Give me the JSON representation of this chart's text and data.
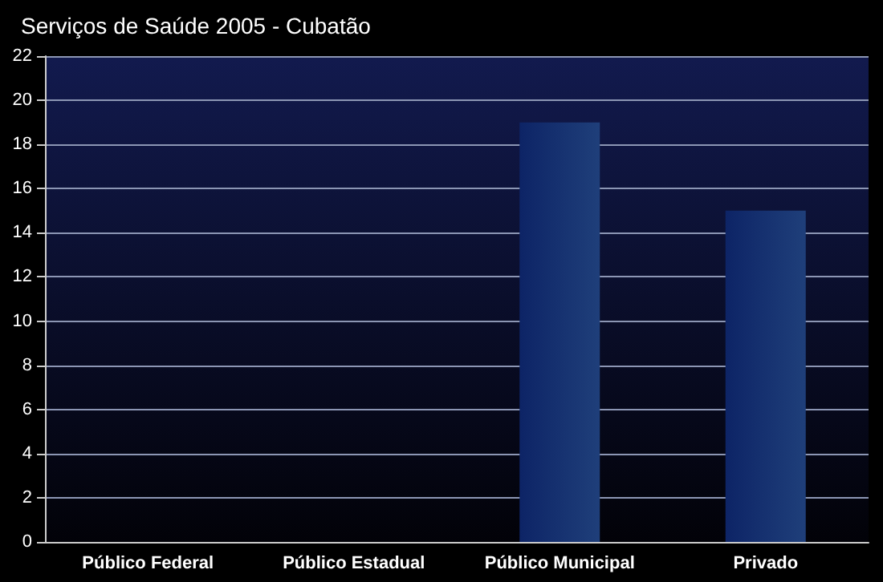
{
  "chart_data": {
    "type": "bar",
    "title": "Serviços de Saúde 2005 - Cubatão",
    "categories": [
      "Público Federal",
      "Público Estadual",
      "Público Municipal",
      "Privado"
    ],
    "values": [
      0,
      0,
      19,
      15
    ],
    "color": "#1f3f7a",
    "ylim": [
      0,
      22
    ],
    "yticks": [
      0,
      2,
      4,
      6,
      8,
      10,
      12,
      14,
      16,
      18,
      20,
      22
    ],
    "grid": "y"
  }
}
